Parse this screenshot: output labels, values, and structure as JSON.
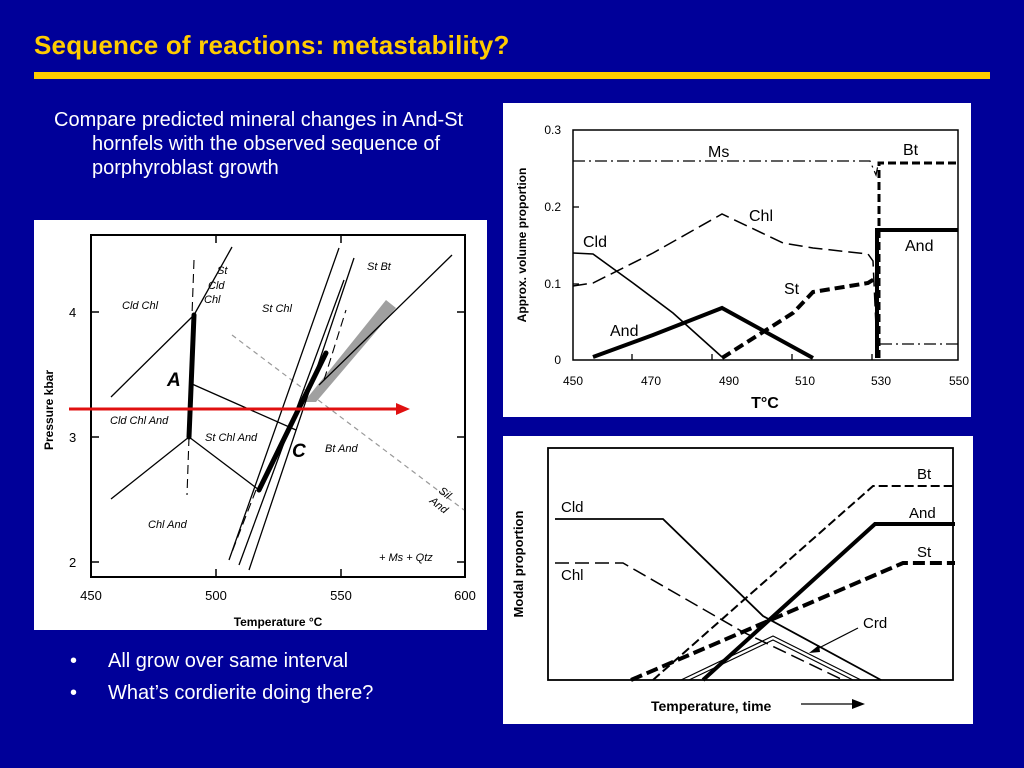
{
  "slide": {
    "title": "Sequence of reactions: metastability?",
    "intro": "Compare predicted mineral changes in And-St hornfels with the observed sequence of porphyroblast growth",
    "bullets": [
      {
        "marker": "•",
        "text": "All grow over same interval"
      },
      {
        "marker": "•",
        "text": "What’s cordierite doing there?"
      }
    ]
  },
  "pt_diagram": {
    "xlabel": "Temperature °C",
    "ylabel": "Pressure kbar",
    "x_ticks": [
      "450",
      "500",
      "550",
      "600"
    ],
    "y_ticks": [
      "4",
      "3",
      "2"
    ],
    "field_labels": {
      "st_cld_chl_1": "St",
      "st_cld_chl_2": "Cld",
      "st_cld_chl_3": "Chl",
      "cld_chl": "Cld Chl",
      "st_chl": "St Chl",
      "st_bt": "St Bt",
      "cld_chl_and": "Cld Chl And",
      "st_chl_and": "St Chl And",
      "bt_and": "Bt And",
      "chl_and": "Chl And",
      "sil": "Sil",
      "and": "And",
      "ms_qtz": "+ Ms + Qtz"
    },
    "point_labels": {
      "a": "A",
      "c": "C"
    },
    "colors": {
      "path_arrow": "#E01010",
      "band": "#A0A0A0"
    }
  },
  "volume_chart": {
    "xlabel": "T°C",
    "ylabel": "Approx. volume proportion",
    "x_ticks": [
      "450",
      "470",
      "490",
      "510",
      "530",
      "550"
    ],
    "y_ticks": [
      "0.3",
      "0.2",
      "0.1",
      "0"
    ],
    "series_labels": {
      "ms": "Ms",
      "bt": "Bt",
      "chl": "Chl",
      "cld": "Cld",
      "st": "St",
      "and": "And"
    }
  },
  "modal_chart": {
    "xlabel": "Temperature, time",
    "ylabel": "Modal proportion",
    "series_labels": {
      "bt": "Bt",
      "and": "And",
      "st": "St",
      "cld": "Cld",
      "chl": "Chl",
      "crd": "Crd"
    }
  }
}
